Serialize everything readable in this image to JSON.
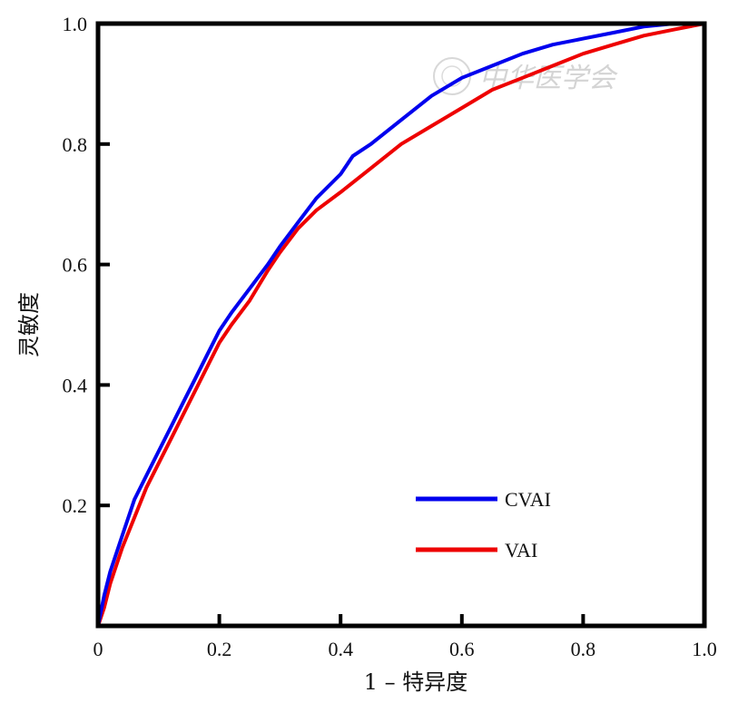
{
  "chart_data": {
    "type": "line",
    "xlabel": "1 – 特异度",
    "ylabel": "灵敏度",
    "xlim": [
      0,
      1
    ],
    "ylim": [
      0,
      1
    ],
    "x_ticks": [
      "0",
      "0.2",
      "0.4",
      "0.6",
      "0.8",
      "1.0"
    ],
    "y_ticks": [
      "0.2",
      "0.4",
      "0.6",
      "0.8",
      "1.0"
    ],
    "grid": false,
    "legend_position": "bottom-right",
    "watermark": "中华医学会",
    "series": [
      {
        "name": "CVAI",
        "color": "#0000ee",
        "points": [
          [
            0,
            0
          ],
          [
            0.01,
            0.05
          ],
          [
            0.02,
            0.09
          ],
          [
            0.04,
            0.15
          ],
          [
            0.06,
            0.21
          ],
          [
            0.08,
            0.25
          ],
          [
            0.1,
            0.29
          ],
          [
            0.12,
            0.33
          ],
          [
            0.14,
            0.37
          ],
          [
            0.16,
            0.41
          ],
          [
            0.18,
            0.45
          ],
          [
            0.2,
            0.49
          ],
          [
            0.22,
            0.52
          ],
          [
            0.25,
            0.56
          ],
          [
            0.28,
            0.6
          ],
          [
            0.3,
            0.63
          ],
          [
            0.33,
            0.67
          ],
          [
            0.36,
            0.71
          ],
          [
            0.4,
            0.75
          ],
          [
            0.42,
            0.78
          ],
          [
            0.45,
            0.8
          ],
          [
            0.5,
            0.84
          ],
          [
            0.55,
            0.88
          ],
          [
            0.6,
            0.91
          ],
          [
            0.65,
            0.93
          ],
          [
            0.7,
            0.95
          ],
          [
            0.75,
            0.965
          ],
          [
            0.8,
            0.975
          ],
          [
            0.85,
            0.985
          ],
          [
            0.9,
            0.995
          ],
          [
            0.95,
            1.0
          ],
          [
            1.0,
            1.0
          ]
        ]
      },
      {
        "name": "VAI",
        "color": "#ee0000",
        "points": [
          [
            0,
            0
          ],
          [
            0.01,
            0.03
          ],
          [
            0.02,
            0.07
          ],
          [
            0.04,
            0.13
          ],
          [
            0.06,
            0.18
          ],
          [
            0.08,
            0.23
          ],
          [
            0.1,
            0.27
          ],
          [
            0.12,
            0.31
          ],
          [
            0.14,
            0.35
          ],
          [
            0.16,
            0.39
          ],
          [
            0.18,
            0.43
          ],
          [
            0.2,
            0.47
          ],
          [
            0.22,
            0.5
          ],
          [
            0.25,
            0.54
          ],
          [
            0.28,
            0.59
          ],
          [
            0.3,
            0.62
          ],
          [
            0.33,
            0.66
          ],
          [
            0.36,
            0.69
          ],
          [
            0.4,
            0.72
          ],
          [
            0.45,
            0.76
          ],
          [
            0.5,
            0.8
          ],
          [
            0.55,
            0.83
          ],
          [
            0.6,
            0.86
          ],
          [
            0.65,
            0.89
          ],
          [
            0.7,
            0.91
          ],
          [
            0.75,
            0.93
          ],
          [
            0.8,
            0.95
          ],
          [
            0.85,
            0.965
          ],
          [
            0.9,
            0.98
          ],
          [
            0.95,
            0.99
          ],
          [
            1.0,
            1.0
          ]
        ]
      }
    ]
  }
}
